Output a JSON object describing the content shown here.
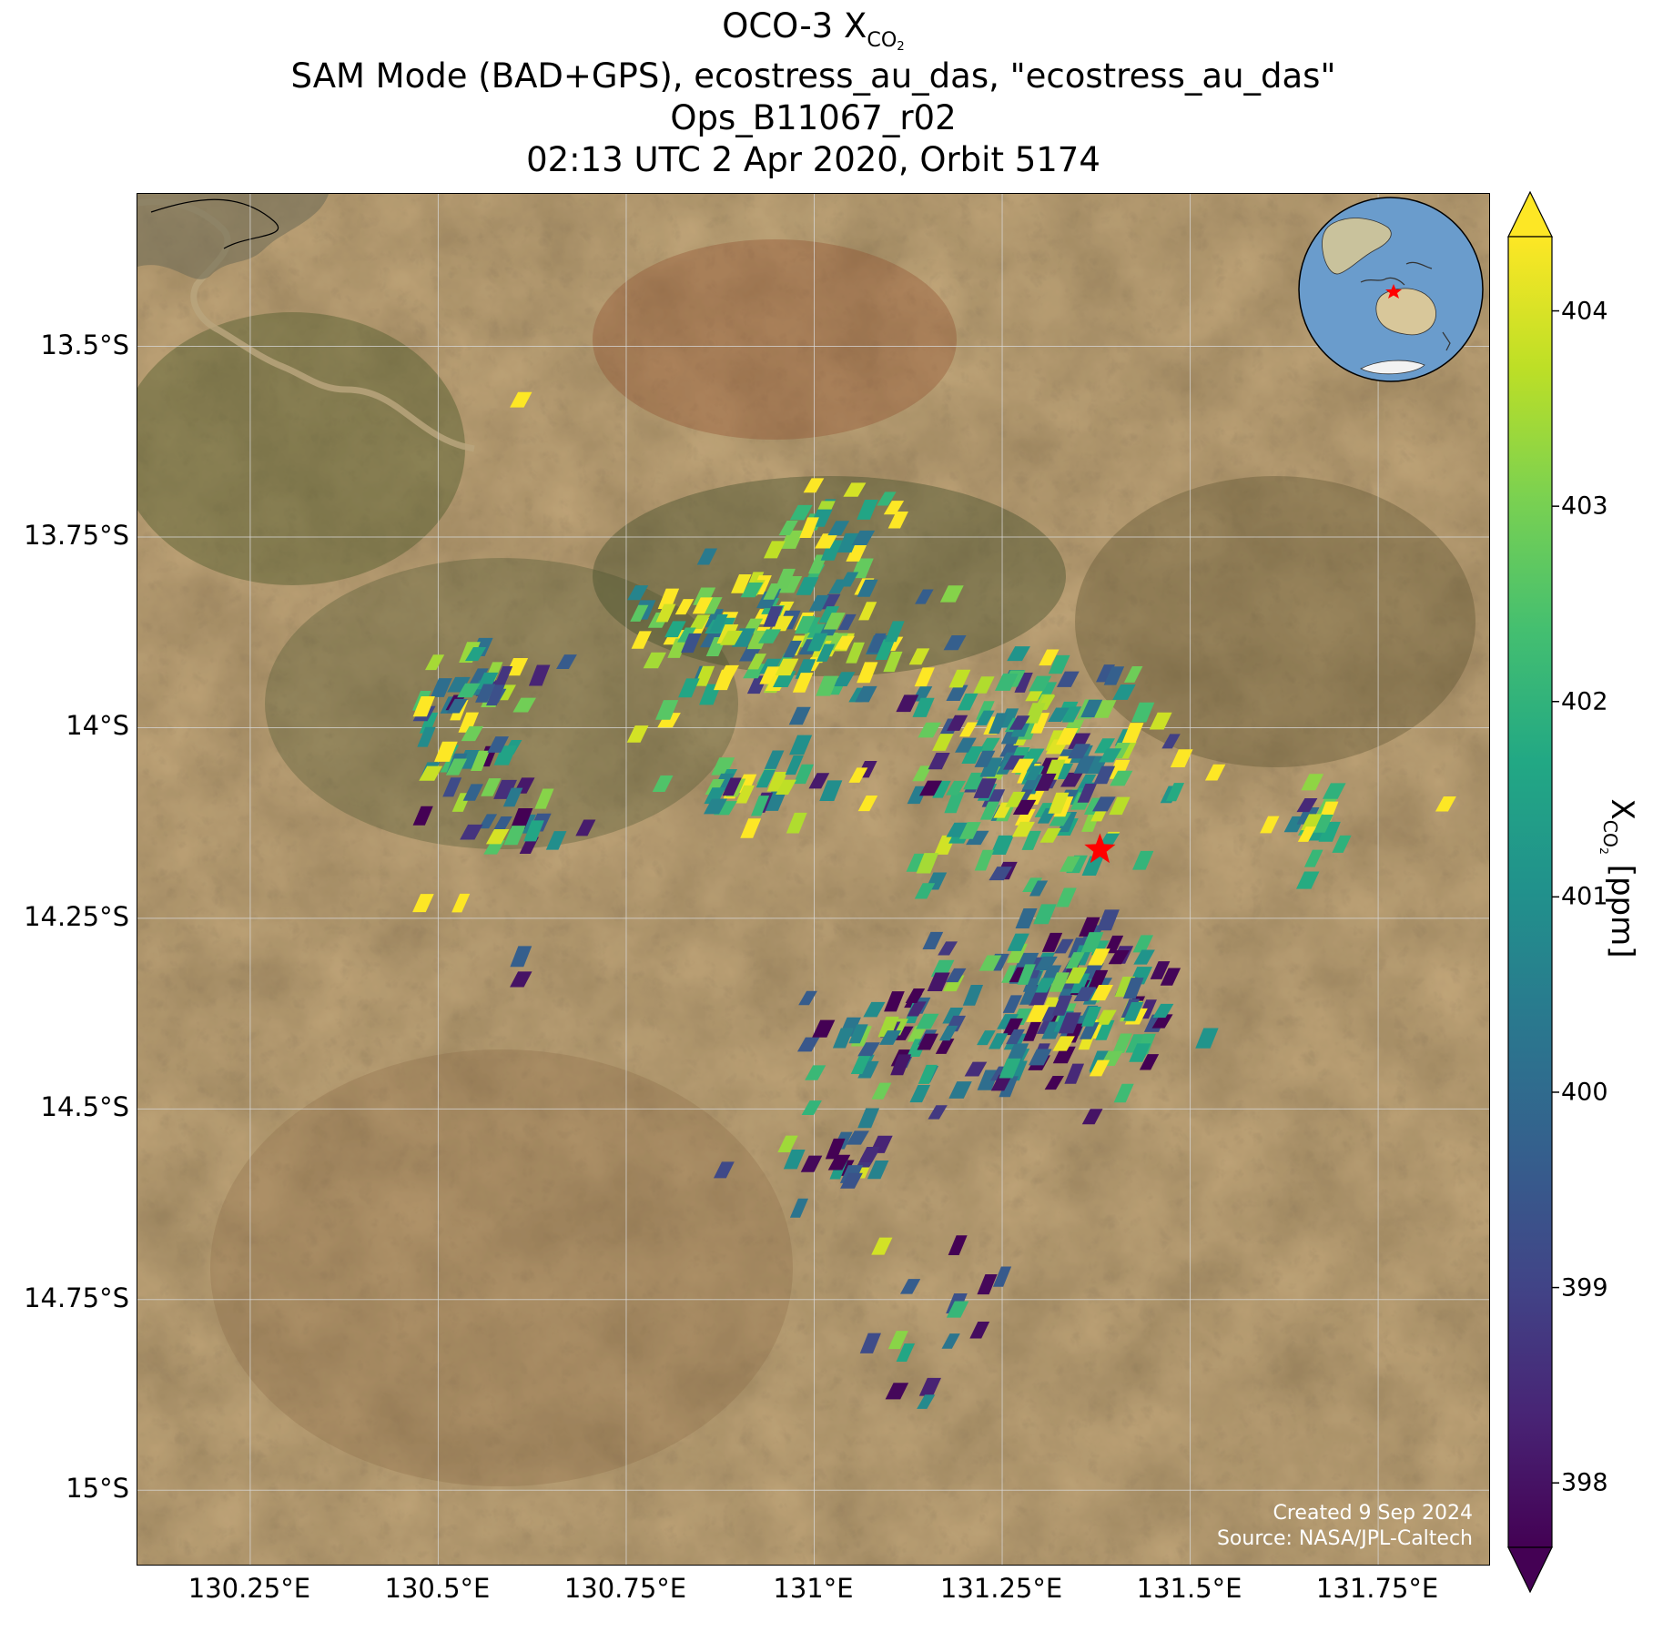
{
  "title": {
    "line1_main": "OCO-3 X",
    "line1_sub": "CO",
    "line1_subsub": "2",
    "line2": "SAM Mode (BAD+GPS), ecostress_au_das, \"ecostress_au_das\"",
    "line3": "Ops_B11067_r02",
    "line4": "02:13 UTC 2 Apr 2020, Orbit 5174"
  },
  "map": {
    "lon_range": [
      130.1,
      131.9
    ],
    "lat_range": [
      -15.1,
      -13.3
    ],
    "lat_ticks": [
      {
        "value": -13.5,
        "label": "13.5°S"
      },
      {
        "value": -13.75,
        "label": "13.75°S"
      },
      {
        "value": -14.0,
        "label": "14°S"
      },
      {
        "value": -14.25,
        "label": "14.25°S"
      },
      {
        "value": -14.5,
        "label": "14.5°S"
      },
      {
        "value": -14.75,
        "label": "14.75°S"
      },
      {
        "value": -15.0,
        "label": "15°S"
      }
    ],
    "lon_ticks": [
      {
        "value": 130.25,
        "label": "130.25°E"
      },
      {
        "value": 130.5,
        "label": "130.5°E"
      },
      {
        "value": 130.75,
        "label": "130.75°E"
      },
      {
        "value": 131.0,
        "label": "131°E"
      },
      {
        "value": 131.25,
        "label": "131.25°E"
      },
      {
        "value": 131.5,
        "label": "131.5°E"
      },
      {
        "value": 131.75,
        "label": "131.75°E"
      }
    ],
    "gridlines": true,
    "background": "satellite imagery",
    "target_marker": {
      "lon": 131.38,
      "lat": -14.16,
      "symbol": "star",
      "color": "#ff0000"
    },
    "credit_line1": "Created 9 Sep 2024",
    "credit_line2": "Source: NASA/JPL-Caltech",
    "inset": "globe-locator",
    "colors": {
      "land": "#7a5c37",
      "grid": "#d8d8d8",
      "ocean": "#6a9ccc"
    }
  },
  "colorbar": {
    "min": 398,
    "max": 404,
    "extend": "both",
    "colormap": "viridis",
    "ticks": [
      {
        "value": 398,
        "label": "398"
      },
      {
        "value": 399,
        "label": "399"
      },
      {
        "value": 400,
        "label": "400"
      },
      {
        "value": 401,
        "label": "401"
      },
      {
        "value": 402,
        "label": "402"
      },
      {
        "value": 403,
        "label": "403"
      },
      {
        "value": 404,
        "label": "404"
      }
    ],
    "label_main": "X",
    "label_sub": "CO",
    "label_subsub": "2",
    "label_unit": " [ppm]"
  },
  "chart_data": {
    "type": "scatter",
    "title": "OCO-3 XCO2",
    "xlabel": "",
    "ylabel": "",
    "x_units": "longitude °E",
    "y_units": "latitude °S",
    "value_units": "ppm",
    "clusters": [
      {
        "lon": 131.3,
        "lat": -14.05,
        "spread_lon": 0.16,
        "spread_lat": 0.12,
        "count": 170,
        "mean_xco2": 401.5
      },
      {
        "lon": 130.97,
        "lat": -13.88,
        "spread_lon": 0.17,
        "spread_lat": 0.09,
        "count": 130,
        "mean_xco2": 402.6
      },
      {
        "lon": 130.55,
        "lat": -13.96,
        "spread_lon": 0.08,
        "spread_lat": 0.09,
        "count": 45,
        "mean_xco2": 401.5
      },
      {
        "lon": 131.33,
        "lat": -14.33,
        "spread_lon": 0.13,
        "spread_lat": 0.1,
        "count": 95,
        "mean_xco2": 400.0
      },
      {
        "lon": 131.15,
        "lat": -14.42,
        "spread_lon": 0.15,
        "spread_lat": 0.07,
        "count": 55,
        "mean_xco2": 400.2
      },
      {
        "lon": 131.68,
        "lat": -14.12,
        "spread_lon": 0.05,
        "spread_lat": 0.06,
        "count": 20,
        "mean_xco2": 402.3
      },
      {
        "lon": 130.95,
        "lat": -14.08,
        "spread_lon": 0.1,
        "spread_lat": 0.04,
        "count": 30,
        "mean_xco2": 402.0
      },
      {
        "lon": 130.58,
        "lat": -14.12,
        "spread_lon": 0.08,
        "spread_lat": 0.05,
        "count": 22,
        "mean_xco2": 400.5
      },
      {
        "lon": 131.4,
        "lat": -14.4,
        "spread_lon": 0.08,
        "spread_lat": 0.08,
        "count": 28,
        "mean_xco2": 402.0
      },
      {
        "lon": 131.05,
        "lat": -13.72,
        "spread_lon": 0.1,
        "spread_lat": 0.04,
        "count": 16,
        "mean_xco2": 402.8
      },
      {
        "lon": 131.05,
        "lat": -14.55,
        "spread_lon": 0.1,
        "spread_lat": 0.05,
        "count": 18,
        "mean_xco2": 399.7
      },
      {
        "lon": 131.15,
        "lat": -14.8,
        "spread_lon": 0.06,
        "spread_lat": 0.1,
        "count": 10,
        "mean_xco2": 399.3
      }
    ],
    "isolated_soundings": [
      {
        "lon": 130.61,
        "lat": -13.57,
        "xco2": 404.2
      },
      {
        "lon": 130.49,
        "lat": -14.06,
        "xco2": 403.5
      },
      {
        "lon": 130.48,
        "lat": -14.23,
        "xco2": 404.3
      },
      {
        "lon": 130.53,
        "lat": -14.23,
        "xco2": 404.5
      },
      {
        "lon": 130.61,
        "lat": -14.3,
        "xco2": 399.8
      },
      {
        "lon": 130.61,
        "lat": -14.33,
        "xco2": 398.3
      },
      {
        "lon": 130.88,
        "lat": -14.58,
        "xco2": 399.3
      },
      {
        "lon": 130.98,
        "lat": -14.63,
        "xco2": 400.3
      },
      {
        "lon": 131.09,
        "lat": -14.68,
        "xco2": 403.6
      },
      {
        "lon": 131.23,
        "lat": -14.73,
        "xco2": 398.1
      },
      {
        "lon": 131.22,
        "lat": -14.79,
        "xco2": 398.2
      },
      {
        "lon": 131.11,
        "lat": -14.87,
        "xco2": 398.1
      },
      {
        "lon": 131.25,
        "lat": -14.72,
        "xco2": 399.7
      },
      {
        "lon": 131.37,
        "lat": -14.51,
        "xco2": 398.3
      },
      {
        "lon": 131.84,
        "lat": -14.1,
        "xco2": 404.0
      }
    ]
  }
}
